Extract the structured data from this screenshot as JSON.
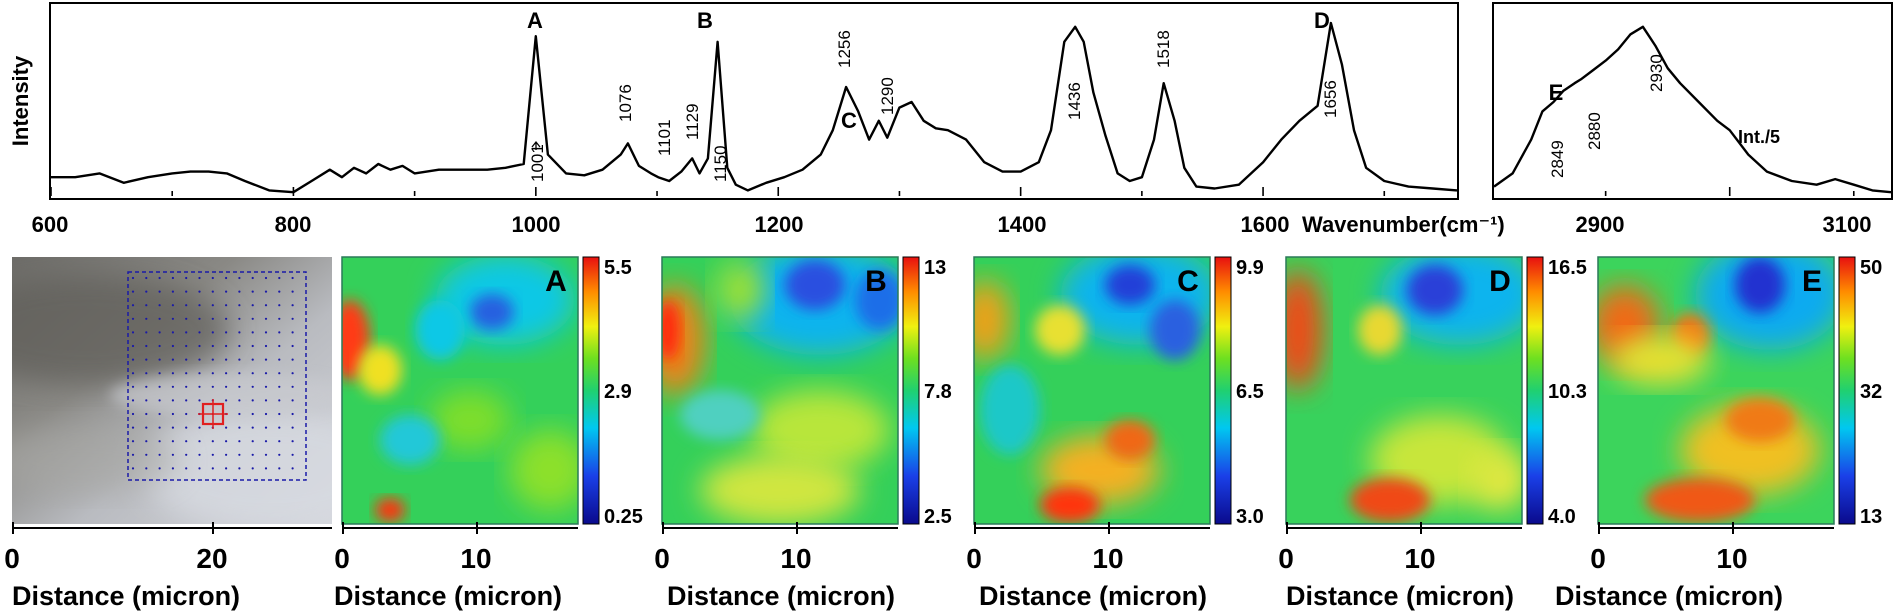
{
  "chart_data": [
    {
      "type": "line",
      "panel": "spectrum-main",
      "ylabel": "Intensity",
      "xlabel": "Wavenumber(cm⁻¹)",
      "xlim": [
        600,
        1760
      ],
      "ylim": [
        0,
        1
      ],
      "xticks": [
        "600",
        "800",
        "1000",
        "1200",
        "1400",
        "1600"
      ],
      "x": [
        600,
        620,
        640,
        660,
        680,
        700,
        715,
        730,
        745,
        760,
        780,
        800,
        815,
        830,
        840,
        850,
        860,
        870,
        880,
        890,
        900,
        920,
        940,
        960,
        975,
        990,
        1000,
        1010,
        1025,
        1040,
        1055,
        1070,
        1076,
        1085,
        1095,
        1101,
        1110,
        1120,
        1129,
        1135,
        1142,
        1150,
        1158,
        1165,
        1175,
        1190,
        1205,
        1220,
        1235,
        1245,
        1256,
        1266,
        1275,
        1283,
        1290,
        1300,
        1310,
        1320,
        1330,
        1340,
        1355,
        1370,
        1385,
        1400,
        1415,
        1425,
        1436,
        1445,
        1452,
        1460,
        1470,
        1480,
        1490,
        1500,
        1510,
        1518,
        1527,
        1535,
        1545,
        1560,
        1580,
        1600,
        1615,
        1630,
        1645,
        1656,
        1665,
        1675,
        1685,
        1700,
        1720,
        1740,
        1760
      ],
      "y": [
        0.1,
        0.1,
        0.12,
        0.07,
        0.1,
        0.12,
        0.13,
        0.13,
        0.12,
        0.08,
        0.03,
        0.02,
        0.08,
        0.14,
        0.1,
        0.15,
        0.12,
        0.17,
        0.14,
        0.16,
        0.12,
        0.14,
        0.14,
        0.14,
        0.15,
        0.17,
        0.85,
        0.22,
        0.12,
        0.11,
        0.14,
        0.22,
        0.28,
        0.16,
        0.12,
        0.1,
        0.08,
        0.13,
        0.2,
        0.12,
        0.2,
        0.82,
        0.15,
        0.06,
        0.03,
        0.07,
        0.1,
        0.14,
        0.22,
        0.35,
        0.58,
        0.45,
        0.3,
        0.4,
        0.31,
        0.47,
        0.5,
        0.4,
        0.36,
        0.35,
        0.3,
        0.18,
        0.13,
        0.13,
        0.18,
        0.35,
        0.82,
        0.9,
        0.82,
        0.55,
        0.32,
        0.12,
        0.08,
        0.1,
        0.3,
        0.6,
        0.4,
        0.15,
        0.05,
        0.04,
        0.06,
        0.18,
        0.3,
        0.4,
        0.48,
        0.92,
        0.7,
        0.35,
        0.15,
        0.08,
        0.05,
        0.04,
        0.03
      ],
      "annotations": [
        {
          "text": "A",
          "x": 1001
        },
        {
          "text": "1001",
          "x": 1001
        },
        {
          "text": "1076",
          "x": 1076
        },
        {
          "text": "1101",
          "x": 1101
        },
        {
          "text": "1129",
          "x": 1129
        },
        {
          "text": "B",
          "x": 1150
        },
        {
          "text": "1150",
          "x": 1150
        },
        {
          "text": "1256",
          "x": 1256
        },
        {
          "text": "C",
          "x": 1256
        },
        {
          "text": "1290",
          "x": 1290
        },
        {
          "text": "1436",
          "x": 1436
        },
        {
          "text": "1518",
          "x": 1518
        },
        {
          "text": "D",
          "x": 1656
        },
        {
          "text": "1656",
          "x": 1656
        }
      ]
    },
    {
      "type": "line",
      "panel": "spectrum-ch",
      "xlim": [
        2810,
        3130
      ],
      "ylim": [
        0,
        1
      ],
      "xticks": [
        "2900",
        "3100"
      ],
      "x": [
        2810,
        2825,
        2840,
        2849,
        2858,
        2866,
        2875,
        2880,
        2890,
        2900,
        2910,
        2920,
        2930,
        2940,
        2950,
        2960,
        2975,
        2990,
        3000,
        3015,
        3030,
        3050,
        3070,
        3085,
        3100,
        3115,
        3130
      ],
      "y": [
        0.05,
        0.12,
        0.3,
        0.45,
        0.5,
        0.56,
        0.6,
        0.62,
        0.67,
        0.72,
        0.78,
        0.86,
        0.9,
        0.8,
        0.68,
        0.6,
        0.5,
        0.4,
        0.35,
        0.22,
        0.13,
        0.08,
        0.06,
        0.09,
        0.06,
        0.03,
        0.02
      ],
      "annotations": [
        {
          "text": "E",
          "x": 2849
        },
        {
          "text": "2849",
          "x": 2849
        },
        {
          "text": "2880",
          "x": 2880
        },
        {
          "text": "2930",
          "x": 2930
        },
        {
          "text": "Int./5",
          "x": 3040
        }
      ]
    },
    {
      "type": "image",
      "panel": "optical-image",
      "xlabel": "Distance (micron)",
      "xticks": [
        "0",
        "20"
      ]
    },
    {
      "type": "heatmap",
      "panel": "map-A",
      "label": "A",
      "xlabel": "Distance (micron)",
      "xticks": [
        "0",
        "10"
      ],
      "colorbar": [
        "5.5",
        "2.9",
        "0.25"
      ]
    },
    {
      "type": "heatmap",
      "panel": "map-B",
      "label": "B",
      "xlabel": "Distance (micron)",
      "xticks": [
        "0",
        "10"
      ],
      "colorbar": [
        "13",
        "7.8",
        "2.5"
      ]
    },
    {
      "type": "heatmap",
      "panel": "map-C",
      "label": "C",
      "xlabel": "Distance (micron)",
      "xticks": [
        "0",
        "10"
      ],
      "colorbar": [
        "9.9",
        "6.5",
        "3.0"
      ]
    },
    {
      "type": "heatmap",
      "panel": "map-D",
      "label": "D",
      "xlabel": "Distance (micron)",
      "xticks": [
        "0",
        "10"
      ],
      "colorbar": [
        "16.5",
        "10.3",
        "4.0"
      ]
    },
    {
      "type": "heatmap",
      "panel": "map-E",
      "label": "E",
      "xlabel": "Distance (micron)",
      "xticks": [
        "0",
        "10"
      ],
      "colorbar": [
        "50",
        "32",
        "13"
      ]
    }
  ],
  "colors": {
    "line": "#000000",
    "scan-grid": "#1a1aa8",
    "marker": "#e02020",
    "colormap": [
      "#0a0a8c",
      "#1a40e8",
      "#00c8f0",
      "#20d070",
      "#6ee020",
      "#f0f010",
      "#ff8c00",
      "#e81010"
    ]
  }
}
